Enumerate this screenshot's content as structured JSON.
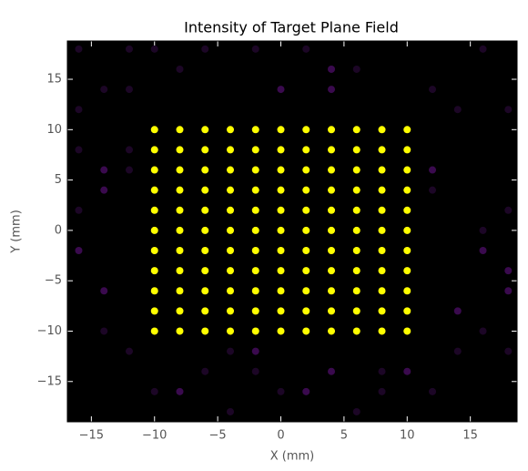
{
  "chart_data": {
    "type": "scatter",
    "title": "Intensity of Target Plane Field",
    "xlabel": "X (mm)",
    "ylabel": "Y (mm)",
    "xlim": [
      -16.9,
      18.7
    ],
    "ylim": [
      -19,
      18.8
    ],
    "xticks": [
      {
        "value": -15,
        "label": "−15"
      },
      {
        "value": -10,
        "label": "−10"
      },
      {
        "value": -5,
        "label": "−5"
      },
      0,
      5,
      10,
      15
    ],
    "yticks": [
      {
        "value": -15,
        "label": "−15"
      },
      {
        "value": -10,
        "label": "−10"
      },
      {
        "value": -5,
        "label": "−5"
      },
      0,
      5,
      10,
      15
    ],
    "background": "#000000",
    "series": [
      {
        "color": "#ffff00",
        "x": [
          -10,
          -8,
          -6,
          -4,
          -2,
          0,
          2,
          4,
          6,
          8,
          10,
          -10,
          -8,
          -6,
          -4,
          -2,
          0,
          2,
          4,
          6,
          8,
          10,
          -10,
          -8,
          -6,
          -4,
          -2,
          0,
          2,
          4,
          6,
          8,
          10,
          -10,
          -8,
          -6,
          -4,
          -2,
          0,
          2,
          4,
          6,
          8,
          10,
          -10,
          -8,
          -6,
          -4,
          -2,
          0,
          2,
          4,
          6,
          8,
          10,
          -10,
          -8,
          -6,
          -4,
          -2,
          0,
          2,
          4,
          6,
          8,
          10,
          -10,
          -8,
          -6,
          -4,
          -2,
          0,
          2,
          4,
          6,
          8,
          10,
          -10,
          -8,
          -6,
          -4,
          -2,
          0,
          2,
          4,
          6,
          8,
          10,
          -10,
          -8,
          -6,
          -4,
          -2,
          0,
          2,
          4,
          6,
          8,
          10,
          -10,
          -8,
          -6,
          -4,
          -2,
          0,
          2,
          4,
          6,
          8,
          10,
          -10,
          -8,
          -6,
          -4,
          -2,
          0,
          2,
          4,
          6,
          8,
          10
        ],
        "values": [
          10,
          10,
          10,
          10,
          10,
          10,
          10,
          10,
          10,
          10,
          10,
          8,
          8,
          8,
          8,
          8,
          8,
          8,
          8,
          8,
          8,
          8,
          6,
          6,
          6,
          6,
          6,
          6,
          6,
          6,
          6,
          6,
          6,
          4,
          4,
          4,
          4,
          4,
          4,
          4,
          4,
          4,
          4,
          4,
          2,
          2,
          2,
          2,
          2,
          2,
          2,
          2,
          2,
          2,
          2,
          0,
          0,
          0,
          0,
          0,
          0,
          0,
          0,
          0,
          0,
          0,
          -2,
          -2,
          -2,
          -2,
          -2,
          -2,
          -2,
          -2,
          -2,
          -2,
          -2,
          -4,
          -4,
          -4,
          -4,
          -4,
          -4,
          -4,
          -4,
          -4,
          -4,
          -4,
          -6,
          -6,
          -6,
          -6,
          -6,
          -6,
          -6,
          -6,
          -6,
          -6,
          -6,
          -8,
          -8,
          -8,
          -8,
          -8,
          -8,
          -8,
          -8,
          -8,
          -8,
          -8,
          -10,
          -10,
          -10,
          -10,
          -10,
          -10,
          -10,
          -10,
          -10,
          -10,
          -10
        ]
      },
      {
        "color": "#3a0a4e",
        "x": [
          -14,
          -14,
          12,
          18,
          18,
          -2,
          10,
          4,
          0,
          4,
          4,
          -8,
          2,
          16,
          14,
          -14,
          -16
        ],
        "values": [
          6,
          4,
          6,
          -4,
          -6,
          -12,
          -14,
          -14,
          14,
          14,
          16,
          -16,
          -16,
          -2,
          -8,
          -6,
          -2
        ]
      },
      {
        "color": "#1c0626",
        "x": [
          -16,
          -12,
          -12,
          -10,
          -14,
          -8,
          -6,
          -2,
          2,
          4,
          6,
          -16,
          -16,
          -12,
          -12,
          -16,
          14,
          16,
          18,
          12,
          12,
          16,
          18,
          -6,
          -2,
          0,
          -12,
          -10,
          -4,
          8,
          12,
          14,
          16,
          18,
          -14,
          6,
          -4,
          8
        ],
        "values": [
          18,
          18,
          14,
          18,
          14,
          16,
          18,
          18,
          18,
          16,
          16,
          12,
          8,
          8,
          6,
          2,
          12,
          18,
          12,
          14,
          4,
          0,
          2,
          -14,
          -14,
          -16,
          -12,
          -16,
          -18,
          -14,
          -16,
          -12,
          -10,
          -12,
          -10,
          -18,
          -12,
          -16
        ]
      }
    ]
  }
}
